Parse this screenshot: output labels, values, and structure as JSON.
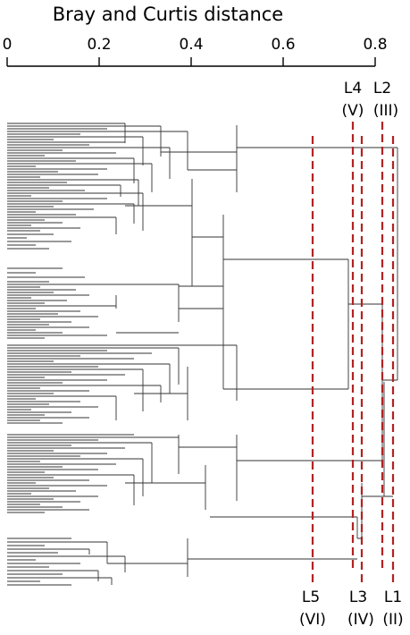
{
  "title": "Bray and Curtis distance",
  "axis": {
    "ticks": [
      {
        "value": 0,
        "label": "0"
      },
      {
        "value": 0.2,
        "label": "0.2"
      },
      {
        "value": 0.4,
        "label": "0.4"
      },
      {
        "value": 0.6,
        "label": "0.6"
      },
      {
        "value": 0.8,
        "label": "0.8"
      }
    ],
    "range": [
      0,
      0.8
    ]
  },
  "colors": {
    "tree": "#333333",
    "cut_line": "#b22222",
    "axis": "#000000"
  },
  "cut_levels": [
    {
      "name": "L1",
      "class": "(II)",
      "distance": 0.83,
      "label_position": "bottom"
    },
    {
      "name": "L2",
      "class": "(III)",
      "distance": 0.81,
      "label_position": "top"
    },
    {
      "name": "L3",
      "class": "(IV)",
      "distance": 0.77,
      "label_position": "bottom"
    },
    {
      "name": "L4",
      "class": "(V)",
      "distance": 0.75,
      "label_position": "top"
    },
    {
      "name": "L5",
      "class": "(VI)",
      "distance": 0.66,
      "label_position": "bottom"
    }
  ]
}
